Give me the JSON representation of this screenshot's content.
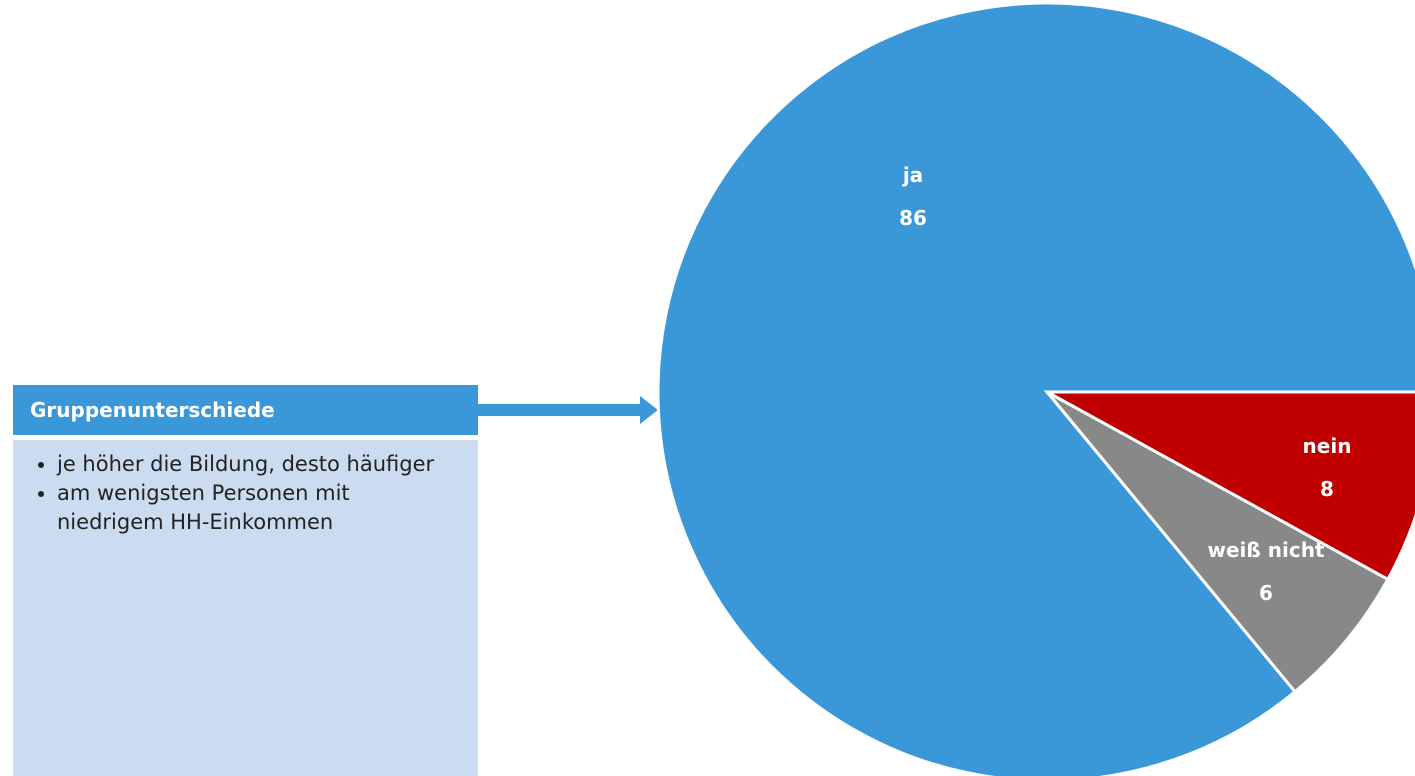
{
  "panel": {
    "title": "Gruppenunterschiede",
    "bullets": [
      "je höher die Bildung, desto häufiger",
      "am wenigsten Personen mit niedrigem HH-Einkommen"
    ]
  },
  "chart_data": {
    "type": "pie",
    "categories": [
      "nein",
      "weiß nicht",
      "ja"
    ],
    "values": [
      8,
      6,
      86
    ],
    "colors": [
      "#c00000",
      "#888888",
      "#3a98d8"
    ]
  }
}
